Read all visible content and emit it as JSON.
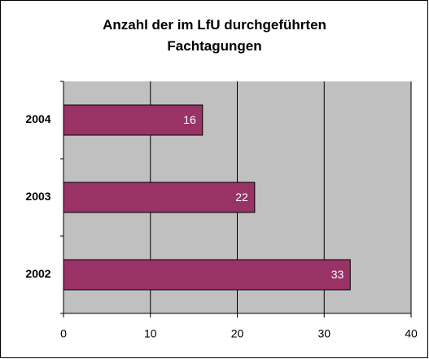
{
  "chart_data": {
    "type": "bar",
    "orientation": "horizontal",
    "title": "Anzahl der im LfU durchgeführten Fachtagungen",
    "categories": [
      "2004",
      "2003",
      "2002"
    ],
    "values": [
      16,
      22,
      33
    ],
    "color": "#993366",
    "xlim": [
      0,
      40
    ],
    "xticks": [
      0,
      10,
      20,
      30,
      40
    ],
    "grid": true
  }
}
